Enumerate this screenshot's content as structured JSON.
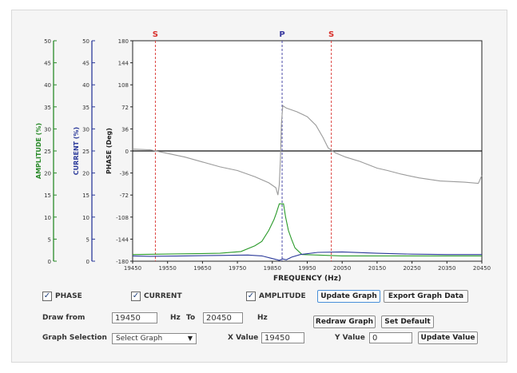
{
  "chart_data": {
    "type": "line",
    "xlabel": "FREQUENCY (Hz)",
    "x_ticks": [
      "19450",
      "19550",
      "19650",
      "19750",
      "19850",
      "19950",
      "20050",
      "20150",
      "20250",
      "20350",
      "20450"
    ],
    "xlim": [
      19450,
      20450
    ],
    "phase_axis": {
      "label": "PHASE (Deg)",
      "ticks": [
        "180",
        "144",
        "108",
        "72",
        "36",
        "0",
        "-36",
        "-72",
        "-108",
        "-144",
        "-180"
      ],
      "ylim": [
        -180,
        180
      ],
      "color": "#222222"
    },
    "current_axis": {
      "label": "CURRENT (%)",
      "ticks": [
        "50",
        "45",
        "40",
        "35",
        "30",
        "25",
        "20",
        "15",
        "10",
        "5",
        "0"
      ],
      "ylim": [
        0,
        50
      ],
      "color": "#2b3a9a"
    },
    "amplitude_axis": {
      "label": "AMPLITUDE (%)",
      "ticks": [
        "50",
        "45",
        "40",
        "35",
        "30",
        "25",
        "20",
        "15",
        "10",
        "5",
        "0"
      ],
      "ylim": [
        0,
        50
      ],
      "color": "#2a8a2a"
    },
    "markers": [
      {
        "label": "S",
        "x": 19515,
        "color": "#d9302c"
      },
      {
        "label": "P",
        "x": 19878,
        "color": "#3a3aa0"
      },
      {
        "label": "S",
        "x": 20019,
        "color": "#d9302c"
      }
    ],
    "series": [
      {
        "name": "PHASE",
        "color": "#9a9a9a",
        "points": [
          [
            19450,
            3
          ],
          [
            19500,
            2
          ],
          [
            19550,
            -4
          ],
          [
            19600,
            -10
          ],
          [
            19650,
            -18
          ],
          [
            19700,
            -26
          ],
          [
            19750,
            -32
          ],
          [
            19800,
            -42
          ],
          [
            19840,
            -52
          ],
          [
            19860,
            -60
          ],
          [
            19866,
            -72
          ],
          [
            19870,
            -55
          ],
          [
            19873,
            -15
          ],
          [
            19876,
            45
          ],
          [
            19880,
            74
          ],
          [
            19890,
            70
          ],
          [
            19920,
            64
          ],
          [
            19950,
            56
          ],
          [
            19975,
            42
          ],
          [
            19995,
            22
          ],
          [
            20010,
            5
          ],
          [
            20030,
            -3
          ],
          [
            20060,
            -10
          ],
          [
            20100,
            -17
          ],
          [
            20150,
            -28
          ],
          [
            20180,
            -32
          ],
          [
            20220,
            -38
          ],
          [
            20270,
            -44
          ],
          [
            20330,
            -49
          ],
          [
            20400,
            -51
          ],
          [
            20440,
            -53
          ],
          [
            20450,
            -40
          ]
        ]
      },
      {
        "name": "AMPLITUDE",
        "color": "#2a9a2a",
        "points": [
          [
            19450,
            1.5
          ],
          [
            19700,
            1.8
          ],
          [
            19760,
            2.2
          ],
          [
            19800,
            3.5
          ],
          [
            19820,
            4.5
          ],
          [
            19840,
            7
          ],
          [
            19855,
            9.5
          ],
          [
            19862,
            11
          ],
          [
            19870,
            13
          ],
          [
            19882,
            13
          ],
          [
            19888,
            10
          ],
          [
            19896,
            7
          ],
          [
            19905,
            5
          ],
          [
            19915,
            3
          ],
          [
            19935,
            1.5
          ],
          [
            19980,
            1.4
          ],
          [
            20050,
            1.2
          ],
          [
            20450,
            1.2
          ]
        ]
      },
      {
        "name": "CURRENT",
        "color": "#2b3a9a",
        "points": [
          [
            19450,
            1.2
          ],
          [
            19500,
            1.1
          ],
          [
            19600,
            1.2
          ],
          [
            19700,
            1.3
          ],
          [
            19780,
            1.4
          ],
          [
            19820,
            1.2
          ],
          [
            19850,
            0.6
          ],
          [
            19870,
            0.2
          ],
          [
            19880,
            0.5
          ],
          [
            19890,
            0.3
          ],
          [
            19905,
            0.9
          ],
          [
            19930,
            1.5
          ],
          [
            19980,
            2.0
          ],
          [
            20050,
            2.1
          ],
          [
            20150,
            1.8
          ],
          [
            20250,
            1.6
          ],
          [
            20350,
            1.5
          ],
          [
            20450,
            1.5
          ]
        ]
      }
    ]
  },
  "controls": {
    "phase_label": "PHASE",
    "current_label": "CURRENT",
    "amplitude_label": "AMPLITUDE",
    "check_mark": "✓",
    "update_graph": "Update Graph",
    "export_graph_data": "Export Graph Data",
    "draw_from_label": "Draw from",
    "draw_from_value": "19450",
    "hz_label_1": "Hz",
    "to_label": "To",
    "draw_to_value": "20450",
    "hz_label_2": "Hz",
    "redraw_graph": "Redraw Graph",
    "set_default": "Set Default",
    "graph_selection_label": "Graph Selection",
    "graph_selection_value": "Select Graph",
    "select_arrow": "▼",
    "x_value_label": "X Value",
    "x_value": "19450",
    "y_value_label": "Y Value",
    "y_value": "0",
    "update_value": "Update Value"
  }
}
